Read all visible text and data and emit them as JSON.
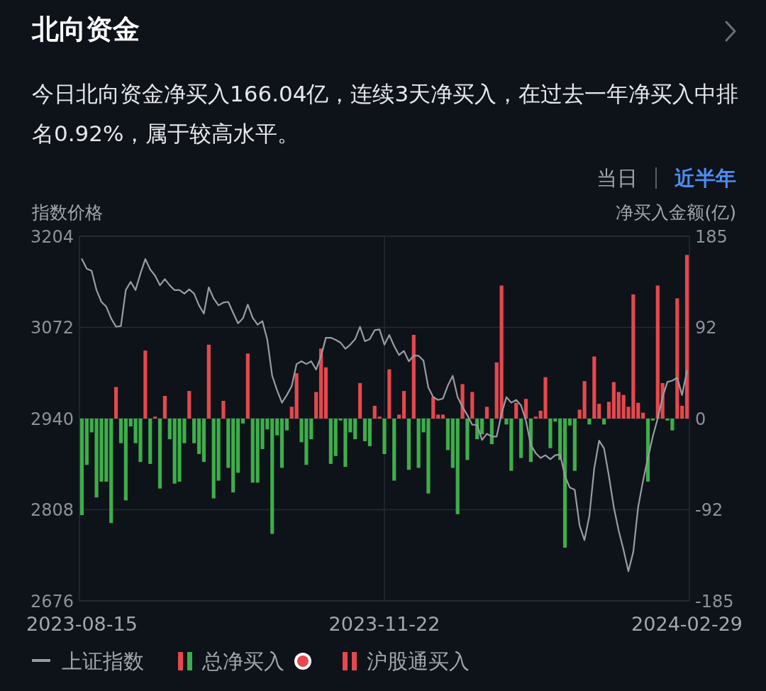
{
  "chart_data": {
    "type": "bar",
    "title": "北向资金",
    "subtitle": "今日北向资金净买入166.04亿，连续3天净买入，在过去一年净买入中排名0.92%，属于较高水平。",
    "annotations": [
      "当日",
      "近半年"
    ],
    "ylabel": "指数价格",
    "y2label": "净买入金额(亿)",
    "categories": [
      "2023-08-15",
      null,
      null,
      null,
      null,
      null,
      null,
      null,
      null,
      null,
      null,
      null,
      null,
      null,
      null,
      null,
      null,
      null,
      null,
      null,
      null,
      null,
      null,
      null,
      null,
      null,
      null,
      null,
      null,
      null,
      null,
      null,
      null,
      null,
      null,
      null,
      null,
      null,
      null,
      null,
      null,
      null,
      null,
      null,
      null,
      null,
      null,
      null,
      null,
      null,
      null,
      null,
      null,
      null,
      null,
      null,
      null,
      null,
      null,
      null,
      null,
      null,
      "2023-11-22",
      null,
      null,
      null,
      null,
      null,
      null,
      null,
      null,
      null,
      null,
      null,
      null,
      null,
      null,
      null,
      null,
      null,
      null,
      null,
      null,
      null,
      null,
      null,
      null,
      null,
      null,
      null,
      null,
      null,
      null,
      null,
      null,
      null,
      null,
      null,
      null,
      null,
      null,
      null,
      null,
      null,
      null,
      null,
      null,
      null,
      null,
      null,
      null,
      null,
      null,
      null,
      null,
      null,
      null,
      null,
      null,
      null,
      null,
      null,
      null,
      null,
      "2024-02-29"
    ],
    "series": [
      {
        "name": "上证指数",
        "type": "line",
        "color": "#9a9ca3",
        "values": [
          3171,
          3157,
          3154,
          3126,
          3109,
          3102,
          3085,
          3073,
          3074,
          3126,
          3138,
          3126,
          3150,
          3171,
          3156,
          3147,
          3133,
          3142,
          3133,
          3126,
          3126,
          3121,
          3127,
          3121,
          3104,
          3092,
          3130,
          3114,
          3104,
          3108,
          3109,
          3093,
          3078,
          3085,
          3105,
          3086,
          3076,
          3081,
          3054,
          3002,
          2981,
          2963,
          2974,
          2987,
          3019,
          3023,
          3019,
          3023,
          3011,
          3030,
          3057,
          3057,
          3054,
          3050,
          3041,
          3047,
          3055,
          3073,
          3052,
          3055,
          3068,
          3069,
          3047,
          3061,
          3045,
          3032,
          3038,
          3023,
          3031,
          3031,
          3024,
          2985,
          2971,
          2967,
          2969,
          2988,
          3002,
          2971,
          2957,
          2945,
          2931,
          2931,
          2909,
          2918,
          2914,
          2914,
          2947,
          2971,
          2963,
          2967,
          2959,
          2937,
          2902,
          2890,
          2883,
          2887,
          2881,
          2887,
          2888,
          2857,
          2840,
          2837,
          2785,
          2764,
          2799,
          2868,
          2908,
          2897,
          2857,
          2812,
          2778,
          2750,
          2719,
          2747,
          2812,
          2850,
          2883,
          2914,
          2940,
          2971,
          2993,
          2995,
          2999,
          2974,
          3009
        ]
      },
      {
        "name": "总净买入",
        "type": "bar",
        "axis": "y2",
        "values": [
          -98,
          -47,
          -14,
          -80,
          -64,
          -64,
          -106,
          32,
          -25,
          -83,
          -8,
          -25,
          -44,
          69,
          -46,
          2,
          -71,
          23,
          -21,
          -66,
          -64,
          -25,
          28,
          -25,
          -36,
          -44,
          75,
          -81,
          -63,
          18,
          -50,
          -75,
          -55,
          -5,
          66,
          -65,
          -65,
          -31,
          -11,
          -117,
          -17,
          -50,
          -12,
          12,
          46,
          -24,
          -47,
          -21,
          27,
          71,
          52,
          -46,
          -38,
          -2,
          -49,
          -14,
          -21,
          36,
          -23,
          -28,
          13,
          2,
          -36,
          50,
          -63,
          4,
          28,
          -52,
          85,
          -50,
          -14,
          -76,
          22,
          4,
          4,
          -32,
          -50,
          -97,
          35,
          -42,
          27,
          -21,
          -16,
          12,
          -26,
          57,
          135,
          -6,
          -53,
          16,
          -40,
          20,
          -44,
          2,
          8,
          42,
          -30,
          -3,
          -42,
          -131,
          -7,
          -53,
          9,
          38,
          -6,
          63,
          15,
          -6,
          17,
          37,
          27,
          24,
          12,
          126,
          16,
          6,
          -64,
          -2,
          135,
          36,
          -2,
          -12,
          122,
          13,
          166.04
        ],
        "colors": [
          "#3dae4a",
          "#3dae4a",
          "#3dae4a",
          "#3dae4a",
          "#3dae4a",
          "#3dae4a",
          "#3dae4a",
          "#e5484d",
          "#3dae4a",
          "#3dae4a",
          "#3dae4a",
          "#3dae4a",
          "#3dae4a",
          "#e5484d",
          "#3dae4a",
          "#e5484d",
          "#3dae4a",
          "#e5484d",
          "#3dae4a",
          "#3dae4a",
          "#3dae4a",
          "#3dae4a",
          "#e5484d",
          "#3dae4a",
          "#3dae4a",
          "#3dae4a",
          "#e5484d",
          "#3dae4a",
          "#3dae4a",
          "#e5484d",
          "#3dae4a",
          "#3dae4a",
          "#3dae4a",
          "#3dae4a",
          "#e5484d",
          "#3dae4a",
          "#3dae4a",
          "#3dae4a",
          "#3dae4a",
          "#3dae4a",
          "#3dae4a",
          "#3dae4a",
          "#3dae4a",
          "#e5484d",
          "#e5484d",
          "#3dae4a",
          "#3dae4a",
          "#3dae4a",
          "#e5484d",
          "#e5484d",
          "#e5484d",
          "#3dae4a",
          "#3dae4a",
          "#3dae4a",
          "#3dae4a",
          "#3dae4a",
          "#3dae4a",
          "#e5484d",
          "#3dae4a",
          "#3dae4a",
          "#e5484d",
          "#e5484d",
          "#3dae4a",
          "#e5484d",
          "#3dae4a",
          "#e5484d",
          "#e5484d",
          "#3dae4a",
          "#e5484d",
          "#3dae4a",
          "#3dae4a",
          "#3dae4a",
          "#e5484d",
          "#e5484d",
          "#e5484d",
          "#3dae4a",
          "#3dae4a",
          "#3dae4a",
          "#e5484d",
          "#3dae4a",
          "#e5484d",
          "#3dae4a",
          "#3dae4a",
          "#e5484d",
          "#3dae4a",
          "#e5484d",
          "#e5484d",
          "#3dae4a",
          "#3dae4a",
          "#e5484d",
          "#3dae4a",
          "#e5484d",
          "#3dae4a",
          "#e5484d",
          "#e5484d",
          "#e5484d",
          "#3dae4a",
          "#3dae4a",
          "#3dae4a",
          "#3dae4a",
          "#3dae4a",
          "#3dae4a",
          "#e5484d",
          "#e5484d",
          "#3dae4a",
          "#e5484d",
          "#e5484d",
          "#3dae4a",
          "#e5484d",
          "#e5484d",
          "#e5484d",
          "#e5484d",
          "#e5484d",
          "#e5484d",
          "#e5484d",
          "#e5484d",
          "#3dae4a",
          "#3dae4a",
          "#e5484d",
          "#e5484d",
          "#3dae4a",
          "#3dae4a",
          "#e5484d",
          "#e5484d",
          "#e5484d"
        ]
      },
      {
        "name": "沪股通买入",
        "type": "bar",
        "axis": "y2",
        "color": "#e5484d",
        "values": [
          null,
          null,
          null,
          null,
          null,
          null,
          null,
          null,
          null,
          null,
          null,
          null,
          null,
          null,
          null,
          null,
          null,
          null,
          null,
          null,
          null,
          null,
          null,
          null,
          null,
          null,
          null,
          null,
          null,
          null,
          null,
          null,
          null,
          null,
          null,
          null,
          null,
          null,
          null,
          null,
          null,
          null,
          null,
          null,
          null,
          null,
          null,
          null,
          null,
          null,
          null,
          null,
          null,
          null,
          null,
          null,
          null,
          null,
          null,
          null,
          null,
          null,
          null,
          null,
          null,
          null,
          null,
          null,
          null,
          null,
          null,
          null,
          null,
          null,
          null,
          null,
          null,
          null,
          null,
          null,
          null,
          null,
          null,
          null,
          null,
          null,
          null,
          null,
          null,
          null,
          null,
          null,
          null,
          null,
          null,
          null,
          null,
          null,
          null,
          null,
          null,
          null,
          null,
          null,
          null,
          null,
          null,
          null,
          null,
          null,
          null,
          null,
          null,
          null,
          null,
          null,
          null,
          null,
          null,
          null,
          null,
          null,
          null,
          null,
          null
        ]
      }
    ],
    "ylim": [
      2676,
      3204
    ],
    "yticks": [
      2676,
      2808,
      2940,
      3072,
      3204
    ],
    "y2lim": [
      -185,
      185
    ],
    "y2ticks": [
      -185,
      {
        "value": -92.5,
        "label": "-92"
      },
      0,
      {
        "value": 92.5,
        "label": "92"
      },
      185
    ],
    "grid": true,
    "legend": "bottom"
  }
}
